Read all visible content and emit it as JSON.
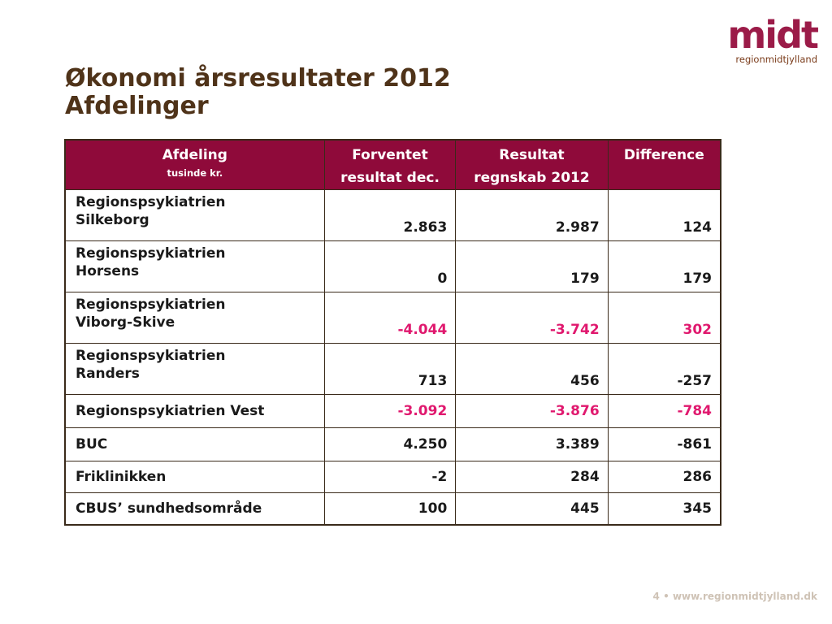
{
  "logo": {
    "mark": "midt",
    "subtitle": "regionmidtjylland"
  },
  "title": {
    "line1": "Økonomi årsresultater 2012",
    "line2": "Afdelinger"
  },
  "table": {
    "headers": {
      "col1": "Afdeling",
      "col1_sub": "tusinde kr.",
      "col2_line1": "Forventet",
      "col2_line2": "resultat dec.",
      "col3_line1": "Resultat",
      "col3_line2": "regnskab 2012",
      "col4": "Difference"
    },
    "rows": [
      {
        "name_line1": "Regionspsykiatrien",
        "name_line2": "Silkeborg",
        "expected": "2.863",
        "result": "2.987",
        "difference": "124",
        "negative": [
          false,
          false,
          false
        ]
      },
      {
        "name_line1": "Regionspsykiatrien",
        "name_line2": "Horsens",
        "expected": "0",
        "result": "179",
        "difference": "179",
        "negative": [
          false,
          false,
          false
        ]
      },
      {
        "name_line1": "Regionspsykiatrien",
        "name_line2": "Viborg-Skive",
        "expected": "-4.044",
        "result": "-3.742",
        "difference": "302",
        "negative": [
          true,
          true,
          true
        ]
      },
      {
        "name_line1": "Regionspsykiatrien",
        "name_line2": "Randers",
        "expected": "713",
        "result": "456",
        "difference": "-257",
        "negative": [
          false,
          false,
          false
        ]
      },
      {
        "name_line1": "Regionspsykiatrien Vest",
        "name_line2": "",
        "expected": "-3.092",
        "result": "-3.876",
        "difference": "-784",
        "negative": [
          true,
          true,
          true
        ]
      },
      {
        "name_line1": "BUC",
        "name_line2": "",
        "expected": "4.250",
        "result": "3.389",
        "difference": "-861",
        "negative": [
          false,
          false,
          false
        ]
      },
      {
        "name_line1": "Friklinikken",
        "name_line2": "",
        "expected": "-2",
        "result": "284",
        "difference": "286",
        "negative": [
          false,
          false,
          false
        ]
      },
      {
        "name_line1": "CBUS’ sundhedsområde",
        "name_line2": "",
        "expected": "100",
        "result": "445",
        "difference": "345",
        "negative": [
          false,
          false,
          false
        ]
      }
    ]
  },
  "footer": {
    "page_number": "4",
    "separator": "•",
    "url": "www.regionmidtjylland.dk"
  },
  "colors": {
    "header_bg": "#8f0a3a",
    "title": "#4f3319",
    "highlight_red": "#e0186e",
    "logo": "#9b1b48"
  }
}
